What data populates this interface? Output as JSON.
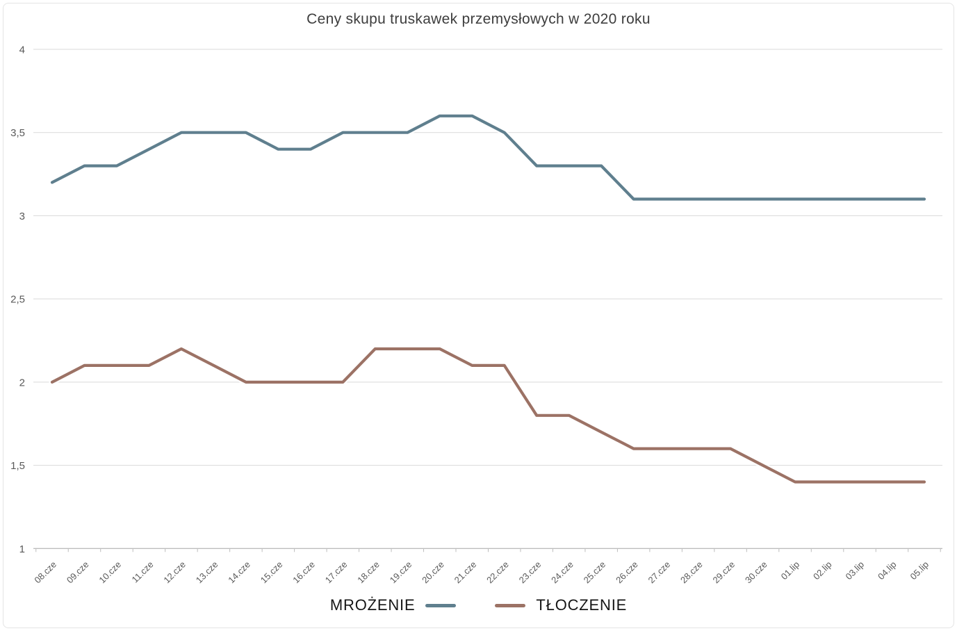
{
  "chart_data": {
    "type": "line",
    "title": "Ceny skupu truskawek przemysłowych w 2020 roku",
    "categories": [
      "08.cze",
      "09.cze",
      "10.cze",
      "11.cze",
      "12.cze",
      "13.cze",
      "14.cze",
      "15.cze",
      "16.cze",
      "17.cze",
      "18.cze",
      "19.cze",
      "20.cze",
      "21.cze",
      "22.cze",
      "23.cze",
      "24.cze",
      "25.cze",
      "26.cze",
      "27.cze",
      "28.cze",
      "29.cze",
      "30.cze",
      "01.lip",
      "02.lip",
      "03.lip",
      "04.lip",
      "05.lip"
    ],
    "series": [
      {
        "name": "MROŻENIE",
        "color": "#5F7F8E",
        "values": [
          3.2,
          3.3,
          3.3,
          3.4,
          3.5,
          3.5,
          3.5,
          3.4,
          3.4,
          3.5,
          3.5,
          3.5,
          3.6,
          3.6,
          3.5,
          3.3,
          3.3,
          3.3,
          3.1,
          3.1,
          3.1,
          3.1,
          3.1,
          3.1,
          3.1,
          3.1,
          3.1,
          3.1
        ]
      },
      {
        "name": "TŁOCZENIE",
        "color": "#9C7265",
        "values": [
          2.0,
          2.1,
          2.1,
          2.1,
          2.2,
          2.1,
          2.0,
          2.0,
          2.0,
          2.0,
          2.2,
          2.2,
          2.2,
          2.1,
          2.1,
          1.8,
          1.8,
          1.7,
          1.6,
          1.6,
          1.6,
          1.6,
          1.5,
          1.4,
          1.4,
          1.4,
          1.4,
          1.4
        ]
      }
    ],
    "xlabel": "",
    "ylabel": "",
    "ylim": [
      1,
      4
    ],
    "yticks": [
      4,
      3.5,
      3,
      2.5,
      2,
      1.5,
      1
    ],
    "ytick_labels": [
      "4",
      "3,5",
      "3",
      "2,5",
      "2",
      "1,5",
      "1"
    ],
    "grid": "horizontal",
    "gridline_color": "#d9d9d9",
    "axis_color": "#bdbdbd",
    "tick_label_color": "#595959",
    "title_color": "#3d3d3d",
    "legend_position": "bottom"
  }
}
